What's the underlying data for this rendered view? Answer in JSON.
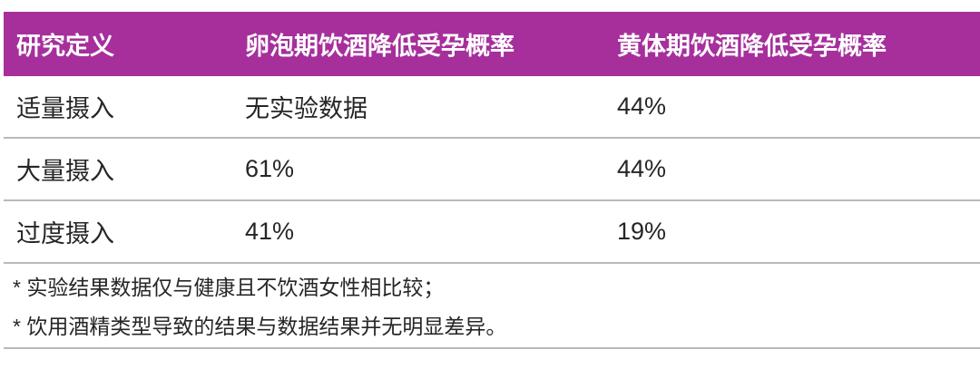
{
  "table": {
    "columns": [
      {
        "label": "研究定义"
      },
      {
        "label": "卵泡期饮酒降低受孕概率"
      },
      {
        "label": "黄体期饮酒降低受孕概率"
      }
    ],
    "rows": [
      {
        "definition": "适量摄入",
        "follicular": "无实验数据",
        "luteal": "44%"
      },
      {
        "definition": "大量摄入",
        "follicular": "61%",
        "luteal": "44%"
      },
      {
        "definition": "过度摄入",
        "follicular": "41%",
        "luteal": "19%"
      }
    ],
    "footnotes": [
      "* 实验结果数据仅与健康且不饮酒女性相比较；",
      "* 饮用酒精类型导致的结果与数据结果并无明显差异。"
    ]
  },
  "colors": {
    "header_bg": "#a62f9c",
    "header_text": "#ffffff",
    "body_text": "#262626",
    "divider": "#b9b9b9",
    "page_bg": "#ffffff"
  },
  "chart_data": {
    "type": "table",
    "title": "",
    "columns": [
      "研究定义",
      "卵泡期饮酒降低受孕概率",
      "黄体期饮酒降低受孕概率"
    ],
    "rows": [
      [
        "适量摄入",
        "无实验数据",
        "44%"
      ],
      [
        "大量摄入",
        "61%",
        "44%"
      ],
      [
        "过度摄入",
        "41%",
        "19%"
      ]
    ],
    "footnotes": [
      "* 实验结果数据仅与健康且不饮酒女性相比较；",
      "* 饮用酒精类型导致的结果与数据结果并无明显差异。"
    ]
  }
}
